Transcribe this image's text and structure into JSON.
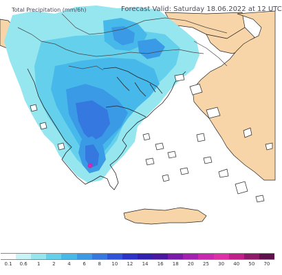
{
  "header": {
    "title": "Total Precipitation (mm/6h)",
    "forecast_label": "Forecast Valid:",
    "forecast_time": "Saturday 18.06.2022 at 12 UTC"
  },
  "colors": {
    "sea": "#ffffff",
    "land_outside": "#f8d5a8",
    "land_model": "#ffffff",
    "coast": "#222222",
    "border": "#555555"
  },
  "legend": {
    "ticks": [
      "0.1",
      "0.6",
      "1",
      "2",
      "4",
      "6",
      "8",
      "10",
      "12",
      "14",
      "16",
      "18",
      "20",
      "25",
      "30",
      "40",
      "50",
      "70"
    ],
    "colors": [
      "#ffffff",
      "#c8f4f8",
      "#96e6f0",
      "#64d0ec",
      "#46b8ea",
      "#3a9ae6",
      "#3478e0",
      "#3054d8",
      "#2c34c8",
      "#3020b0",
      "#4a18a0",
      "#7a1aa8",
      "#a420b0",
      "#c828b0",
      "#e030a8",
      "#c0208a",
      "#901a6a",
      "#60104a"
    ]
  }
}
